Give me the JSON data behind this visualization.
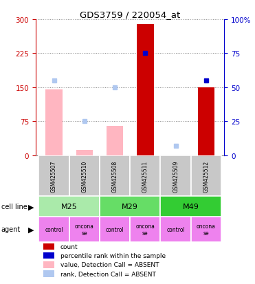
{
  "title": "GDS3759 / 220054_at",
  "samples": [
    "GSM425507",
    "GSM425510",
    "GSM425508",
    "GSM425511",
    "GSM425509",
    "GSM425512"
  ],
  "count_values": [
    null,
    null,
    null,
    290,
    null,
    150
  ],
  "count_absent": [
    145,
    12,
    65,
    null,
    null,
    null
  ],
  "rank_values": [
    null,
    null,
    null,
    75,
    null,
    55
  ],
  "rank_absent": [
    55,
    25,
    50,
    null,
    7,
    null
  ],
  "ylim_left": [
    0,
    300
  ],
  "ylim_right": [
    0,
    100
  ],
  "yticks_left": [
    0,
    75,
    150,
    225,
    300
  ],
  "yticks_right": [
    0,
    25,
    50,
    75,
    100
  ],
  "cell_groups": [
    {
      "label": "M25",
      "start": 0,
      "end": 1,
      "color": "#aaeaaa"
    },
    {
      "label": "M29",
      "start": 2,
      "end": 3,
      "color": "#66dd66"
    },
    {
      "label": "M49",
      "start": 4,
      "end": 5,
      "color": "#33cc33"
    }
  ],
  "agents": [
    "control",
    "oncona\nse",
    "control",
    "oncona\nse",
    "control",
    "oncona\nse"
  ],
  "agent_color": "#ee82ee",
  "count_color": "#cc0000",
  "rank_color": "#0000cc",
  "count_absent_color": "#ffb6c1",
  "rank_absent_color": "#b0c8f0",
  "grid_color": "#888888",
  "sample_box_color": "#c8c8c8",
  "left_tick_color": "#cc0000",
  "right_tick_color": "#0000cc",
  "bar_width": 0.55,
  "legend_items": [
    {
      "color": "#cc0000",
      "label": "count"
    },
    {
      "color": "#0000cc",
      "label": "percentile rank within the sample"
    },
    {
      "color": "#ffb6c1",
      "label": "value, Detection Call = ABSENT"
    },
    {
      "color": "#b0c8f0",
      "label": "rank, Detection Call = ABSENT"
    }
  ]
}
